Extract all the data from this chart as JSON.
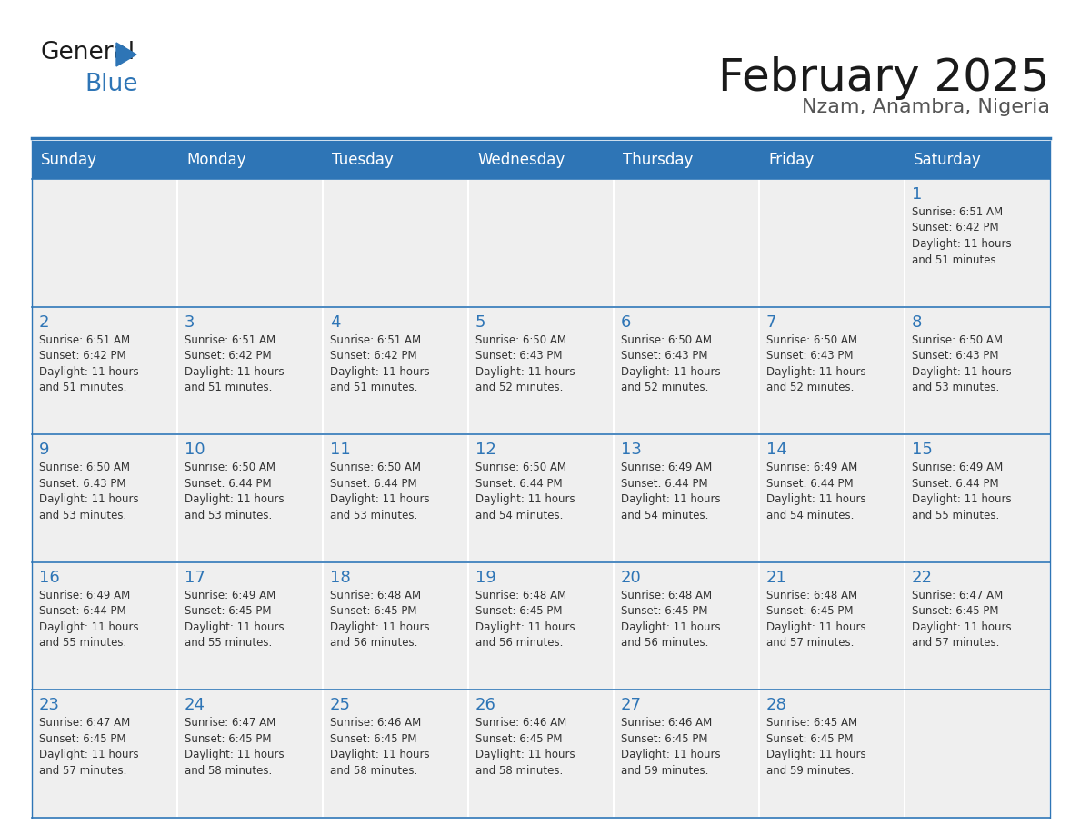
{
  "title": "February 2025",
  "subtitle": "Nzam, Anambra, Nigeria",
  "header_color": "#2E75B6",
  "header_text_color": "#FFFFFF",
  "cell_bg_even": "#EFEFEF",
  "cell_bg_white": "#FFFFFF",
  "cell_text_color": "#333333",
  "day_number_color": "#2E75B6",
  "line_color": "#2E75B6",
  "days_of_week": [
    "Sunday",
    "Monday",
    "Tuesday",
    "Wednesday",
    "Thursday",
    "Friday",
    "Saturday"
  ],
  "calendar_data": [
    [
      {
        "day": null,
        "data": null
      },
      {
        "day": null,
        "data": null
      },
      {
        "day": null,
        "data": null
      },
      {
        "day": null,
        "data": null
      },
      {
        "day": null,
        "data": null
      },
      {
        "day": null,
        "data": null
      },
      {
        "day": 1,
        "data": "Sunrise: 6:51 AM\nSunset: 6:42 PM\nDaylight: 11 hours\nand 51 minutes."
      }
    ],
    [
      {
        "day": 2,
        "data": "Sunrise: 6:51 AM\nSunset: 6:42 PM\nDaylight: 11 hours\nand 51 minutes."
      },
      {
        "day": 3,
        "data": "Sunrise: 6:51 AM\nSunset: 6:42 PM\nDaylight: 11 hours\nand 51 minutes."
      },
      {
        "day": 4,
        "data": "Sunrise: 6:51 AM\nSunset: 6:42 PM\nDaylight: 11 hours\nand 51 minutes."
      },
      {
        "day": 5,
        "data": "Sunrise: 6:50 AM\nSunset: 6:43 PM\nDaylight: 11 hours\nand 52 minutes."
      },
      {
        "day": 6,
        "data": "Sunrise: 6:50 AM\nSunset: 6:43 PM\nDaylight: 11 hours\nand 52 minutes."
      },
      {
        "day": 7,
        "data": "Sunrise: 6:50 AM\nSunset: 6:43 PM\nDaylight: 11 hours\nand 52 minutes."
      },
      {
        "day": 8,
        "data": "Sunrise: 6:50 AM\nSunset: 6:43 PM\nDaylight: 11 hours\nand 53 minutes."
      }
    ],
    [
      {
        "day": 9,
        "data": "Sunrise: 6:50 AM\nSunset: 6:43 PM\nDaylight: 11 hours\nand 53 minutes."
      },
      {
        "day": 10,
        "data": "Sunrise: 6:50 AM\nSunset: 6:44 PM\nDaylight: 11 hours\nand 53 minutes."
      },
      {
        "day": 11,
        "data": "Sunrise: 6:50 AM\nSunset: 6:44 PM\nDaylight: 11 hours\nand 53 minutes."
      },
      {
        "day": 12,
        "data": "Sunrise: 6:50 AM\nSunset: 6:44 PM\nDaylight: 11 hours\nand 54 minutes."
      },
      {
        "day": 13,
        "data": "Sunrise: 6:49 AM\nSunset: 6:44 PM\nDaylight: 11 hours\nand 54 minutes."
      },
      {
        "day": 14,
        "data": "Sunrise: 6:49 AM\nSunset: 6:44 PM\nDaylight: 11 hours\nand 54 minutes."
      },
      {
        "day": 15,
        "data": "Sunrise: 6:49 AM\nSunset: 6:44 PM\nDaylight: 11 hours\nand 55 minutes."
      }
    ],
    [
      {
        "day": 16,
        "data": "Sunrise: 6:49 AM\nSunset: 6:44 PM\nDaylight: 11 hours\nand 55 minutes."
      },
      {
        "day": 17,
        "data": "Sunrise: 6:49 AM\nSunset: 6:45 PM\nDaylight: 11 hours\nand 55 minutes."
      },
      {
        "day": 18,
        "data": "Sunrise: 6:48 AM\nSunset: 6:45 PM\nDaylight: 11 hours\nand 56 minutes."
      },
      {
        "day": 19,
        "data": "Sunrise: 6:48 AM\nSunset: 6:45 PM\nDaylight: 11 hours\nand 56 minutes."
      },
      {
        "day": 20,
        "data": "Sunrise: 6:48 AM\nSunset: 6:45 PM\nDaylight: 11 hours\nand 56 minutes."
      },
      {
        "day": 21,
        "data": "Sunrise: 6:48 AM\nSunset: 6:45 PM\nDaylight: 11 hours\nand 57 minutes."
      },
      {
        "day": 22,
        "data": "Sunrise: 6:47 AM\nSunset: 6:45 PM\nDaylight: 11 hours\nand 57 minutes."
      }
    ],
    [
      {
        "day": 23,
        "data": "Sunrise: 6:47 AM\nSunset: 6:45 PM\nDaylight: 11 hours\nand 57 minutes."
      },
      {
        "day": 24,
        "data": "Sunrise: 6:47 AM\nSunset: 6:45 PM\nDaylight: 11 hours\nand 58 minutes."
      },
      {
        "day": 25,
        "data": "Sunrise: 6:46 AM\nSunset: 6:45 PM\nDaylight: 11 hours\nand 58 minutes."
      },
      {
        "day": 26,
        "data": "Sunrise: 6:46 AM\nSunset: 6:45 PM\nDaylight: 11 hours\nand 58 minutes."
      },
      {
        "day": 27,
        "data": "Sunrise: 6:46 AM\nSunset: 6:45 PM\nDaylight: 11 hours\nand 59 minutes."
      },
      {
        "day": 28,
        "data": "Sunrise: 6:45 AM\nSunset: 6:45 PM\nDaylight: 11 hours\nand 59 minutes."
      },
      {
        "day": null,
        "data": null
      }
    ]
  ],
  "logo_color_general": "#1a1a1a",
  "logo_color_blue": "#2E75B6"
}
